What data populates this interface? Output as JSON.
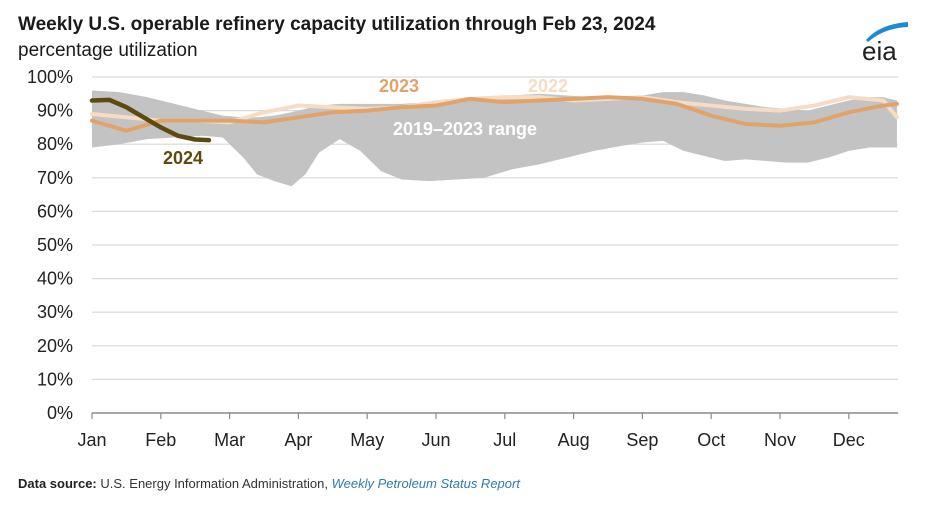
{
  "header": {
    "title": "Weekly U.S. operable refinery capacity utilization through Feb 23, 2024",
    "subtitle": "percentage utilization",
    "logo_text": "eia",
    "logo_icon": "eia-logo-icon"
  },
  "footer": {
    "label": "Data source:",
    "text": "U.S. Energy Information Administration,",
    "link": "Weekly Petroleum Status Report"
  },
  "colors": {
    "range": "#c3c3c3",
    "line_2024": "#5c4a10",
    "line_2023": "#e0a46a",
    "line_2022": "#f5dcc3",
    "grid": "#d9d9d9",
    "range_label": "#ffffff",
    "logo_arc": "#1b8bd1"
  },
  "chart_data": {
    "type": "area",
    "title": "Weekly U.S. operable refinery capacity utilization through Feb 23, 2024",
    "ylabel": "percentage utilization",
    "xlabel": "",
    "ylim": [
      0,
      100
    ],
    "xlim": [
      0,
      11.7
    ],
    "grid": true,
    "y_ticks": [
      "0%",
      "10%",
      "20%",
      "30%",
      "40%",
      "50%",
      "60%",
      "70%",
      "80%",
      "90%",
      "100%"
    ],
    "x_ticks": [
      "Jan",
      "Feb",
      "Mar",
      "Apr",
      "May",
      "Jun",
      "Jul",
      "Aug",
      "Sep",
      "Oct",
      "Nov",
      "Dec"
    ],
    "annotations": [
      {
        "text": "2024",
        "series": "2024"
      },
      {
        "text": "2023",
        "series": "2023"
      },
      {
        "text": "2022",
        "series": "2022"
      },
      {
        "text": "2019–2023 range",
        "series": "range"
      }
    ],
    "range": {
      "name": "2019–2023 range",
      "x": [
        0,
        0.4,
        0.8,
        1.2,
        1.6,
        1.9,
        2.2,
        2.4,
        2.65,
        2.9,
        3.1,
        3.3,
        3.6,
        3.9,
        4.2,
        4.5,
        4.9,
        5.3,
        5.7,
        6.1,
        6.5,
        6.9,
        7.3,
        7.7,
        8.0,
        8.3,
        8.6,
        8.9,
        9.2,
        9.5,
        9.8,
        10.1,
        10.4,
        10.7,
        11.0,
        11.3,
        11.5,
        11.7
      ],
      "low": [
        79,
        80,
        81.5,
        82,
        82.5,
        82,
        76,
        71,
        69,
        67.5,
        71,
        77.5,
        81.5,
        78,
        72,
        69.5,
        69,
        69.5,
        70,
        72.5,
        74,
        76,
        78,
        79.5,
        80.5,
        81,
        78,
        76.5,
        75,
        75.5,
        75,
        74.5,
        74.5,
        76,
        78,
        79,
        79,
        79
      ],
      "high": [
        96,
        95.5,
        94,
        92,
        90,
        88.5,
        88,
        88,
        88.5,
        89.5,
        90.5,
        91.5,
        92,
        92,
        92,
        92,
        92.5,
        93.5,
        94,
        94.5,
        95,
        94.5,
        94,
        94,
        94.5,
        95.5,
        95.5,
        94.5,
        93,
        92,
        91,
        90.5,
        90,
        91.5,
        93,
        94,
        94,
        93
      ]
    },
    "series": [
      {
        "name": "2024",
        "x": [
          0,
          0.25,
          0.5,
          0.75,
          1.0,
          1.25,
          1.5,
          1.7
        ],
        "values": [
          93,
          93.2,
          91,
          88,
          85,
          82.5,
          81.4,
          81.2
        ]
      },
      {
        "name": "2023",
        "x": [
          0,
          0.5,
          1.0,
          1.5,
          2.0,
          2.5,
          3.0,
          3.5,
          4.0,
          4.5,
          5.0,
          5.5,
          6.0,
          6.5,
          7.0,
          7.5,
          8.0,
          8.5,
          9.0,
          9.5,
          10.0,
          10.5,
          11.0,
          11.5,
          11.7
        ],
        "values": [
          87,
          84,
          87,
          87,
          87,
          86.5,
          88,
          89.5,
          90,
          91,
          91.5,
          93.5,
          92.5,
          93,
          93.5,
          94,
          93.5,
          92,
          88.5,
          86,
          85.5,
          86.5,
          89.5,
          91.5,
          92
        ]
      },
      {
        "name": "2022",
        "x": [
          0,
          0.5,
          1.0,
          1.5,
          2.0,
          2.5,
          3.0,
          3.5,
          4.0,
          4.5,
          5.0,
          5.5,
          6.0,
          6.5,
          7.0,
          7.5,
          8.0,
          8.5,
          9.0,
          9.5,
          10.0,
          10.5,
          11.0,
          11.5,
          11.7
        ],
        "values": [
          89,
          88,
          87,
          87,
          86.5,
          89.5,
          91.5,
          91,
          90.5,
          91,
          92.5,
          93.5,
          94,
          94,
          93,
          93.5,
          94,
          92.5,
          91.5,
          90.5,
          90,
          91.5,
          94,
          93,
          88
        ]
      }
    ]
  }
}
